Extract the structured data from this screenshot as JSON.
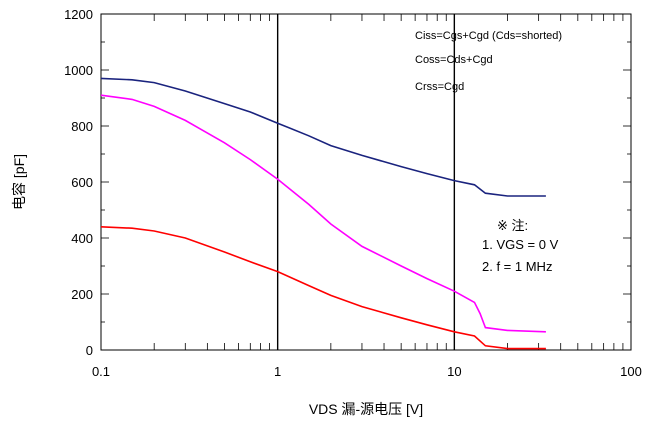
{
  "chart_data": {
    "type": "line",
    "xscale": "log",
    "xlim": [
      0.1,
      100
    ],
    "ylim": [
      0,
      1200
    ],
    "x_ticks": [
      "0.1",
      "1",
      "10",
      "100"
    ],
    "y_ticks": [
      "0",
      "200",
      "400",
      "600",
      "800",
      "1000",
      "1200"
    ],
    "xlabel": "VDS 漏-源电压 [V]",
    "ylabel": "电容 [pF]",
    "grid": "minor vertical ticks; bold verticals at 1 and 10",
    "legend": [
      "Ciss=Cgs+Cgd (Cds=shorted)",
      "Coss=Cds+Cgd",
      "Crss=Cgd"
    ],
    "note": {
      "title": "※ 注:",
      "lines": [
        "1. VGS = 0 V",
        "2. f = 1 MHz"
      ]
    },
    "series": [
      {
        "color": "#1a237e",
        "points": [
          [
            0.1,
            970
          ],
          [
            0.15,
            965
          ],
          [
            0.2,
            955
          ],
          [
            0.3,
            925
          ],
          [
            0.5,
            880
          ],
          [
            0.7,
            850
          ],
          [
            1.0,
            810
          ],
          [
            1.5,
            765
          ],
          [
            2,
            730
          ],
          [
            3,
            695
          ],
          [
            5,
            655
          ],
          [
            7,
            630
          ],
          [
            10,
            605
          ],
          [
            13,
            590
          ],
          [
            15,
            560
          ],
          [
            20,
            550
          ],
          [
            33,
            550
          ]
        ]
      },
      {
        "color": "#ff00ff",
        "points": [
          [
            0.1,
            910
          ],
          [
            0.15,
            895
          ],
          [
            0.2,
            870
          ],
          [
            0.3,
            820
          ],
          [
            0.5,
            740
          ],
          [
            0.7,
            680
          ],
          [
            1.0,
            610
          ],
          [
            1.5,
            520
          ],
          [
            2,
            450
          ],
          [
            3,
            370
          ],
          [
            5,
            300
          ],
          [
            7,
            255
          ],
          [
            10,
            210
          ],
          [
            13,
            170
          ],
          [
            14,
            130
          ],
          [
            15,
            80
          ],
          [
            20,
            70
          ],
          [
            33,
            65
          ]
        ]
      },
      {
        "color": "#ff0000",
        "points": [
          [
            0.1,
            440
          ],
          [
            0.15,
            435
          ],
          [
            0.2,
            425
          ],
          [
            0.3,
            400
          ],
          [
            0.5,
            350
          ],
          [
            0.7,
            315
          ],
          [
            1.0,
            280
          ],
          [
            1.5,
            230
          ],
          [
            2,
            195
          ],
          [
            3,
            155
          ],
          [
            5,
            115
          ],
          [
            7,
            90
          ],
          [
            10,
            65
          ],
          [
            13,
            50
          ],
          [
            15,
            15
          ],
          [
            20,
            5
          ],
          [
            33,
            5
          ]
        ]
      }
    ]
  }
}
